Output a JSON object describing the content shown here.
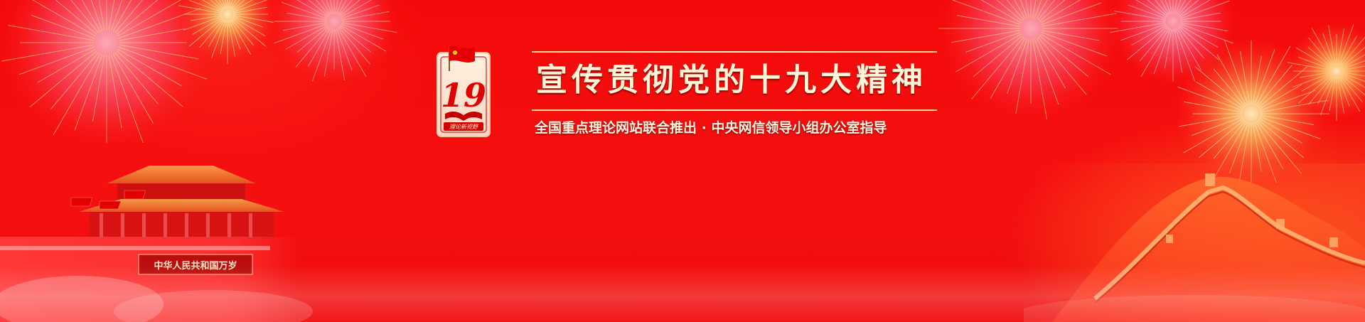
{
  "banner": {
    "title": "宣传贯彻党的十九大精神",
    "subtitle": "全国重点理论网站联合推出 · 中央网信领导小组办公室指导",
    "emblem_number": "19",
    "emblem_caption": "理论新视野",
    "gate_sign": "中华人民共和国万岁"
  },
  "colors": {
    "background": "#f40a0a",
    "title_text": "#fff6d8",
    "rule": "#ffd98a"
  },
  "icons": [
    "fireworks-decoration",
    "party-flag-icon",
    "tiananmen-gate-illustration",
    "great-wall-illustration"
  ]
}
